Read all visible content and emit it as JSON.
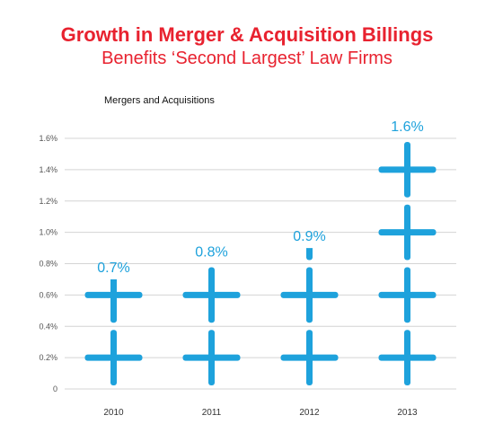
{
  "header": {
    "title": "Growth in Merger & Acquisition Billings",
    "subtitle": "Benefits ‘Second Largest’ Law Firms"
  },
  "chart_data": {
    "type": "bar",
    "title": "Mergers and Acquisitions",
    "categories": [
      "2010",
      "2011",
      "2012",
      "2013"
    ],
    "values": [
      0.7,
      0.8,
      0.9,
      1.6
    ],
    "value_labels": [
      "0.7%",
      "0.8%",
      "0.9%",
      "1.6%"
    ],
    "ylim": [
      0,
      1.6
    ],
    "yticks": [
      0,
      0.2,
      0.4,
      0.6,
      0.8,
      1.0,
      1.2,
      1.4,
      1.6
    ],
    "ytick_labels": [
      "0",
      "0.2%",
      "0.4%",
      "0.6%",
      "0.8%",
      "1.0%",
      "1.2%",
      "1.4%",
      "1.6%"
    ],
    "grid": true,
    "colors": {
      "bar": "#1ea2dc",
      "title": "#e8222f"
    }
  }
}
